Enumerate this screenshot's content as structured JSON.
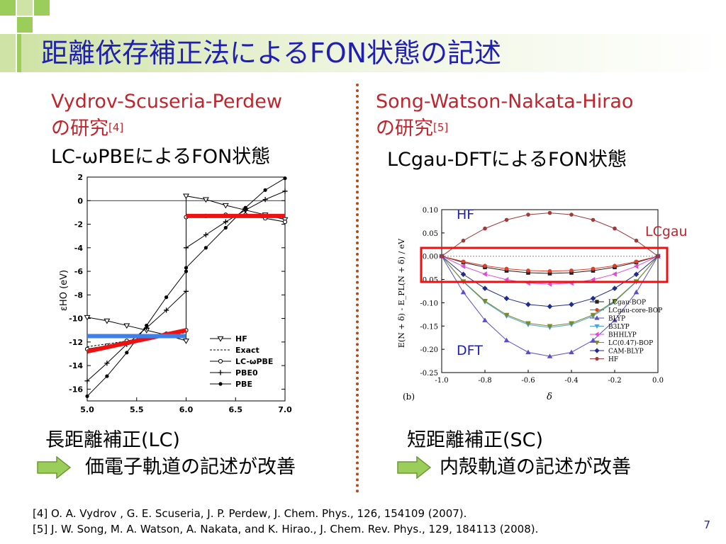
{
  "slide": {
    "title": "距離依存補正法によるFON状態の記述",
    "page_number": "7"
  },
  "left": {
    "heading_line1": "Vydrov-Scuseria-Perdew",
    "heading_line2": "の研究",
    "heading_ref": "[4]",
    "subheading": "LC-ωPBEによるFON状態",
    "bottom_title": "長距離補正(LC)",
    "bottom_text": "価電子軌道の記述が改善"
  },
  "right": {
    "heading_line1": "Song-Watson-Nakata-Hirao",
    "heading_line2": "の研究",
    "heading_ref": "[5]",
    "subheading": "LCgau-DFTによるFON状態",
    "bottom_title": "短距離補正(SC)",
    "bottom_text": "内殻軌道の記述が改善",
    "annot_hf": "HF",
    "annot_lcgau": "LCgau",
    "annot_dft": "DFT"
  },
  "references": [
    "[4] O. A. Vydrov , G. E. Scuseria, J. P. Perdew, J. Chem. Phys., 126, 154109 (2007).",
    "[5] J. W. Song, M. A. Watson, A. Nakata, and K. Hirao., J. Chem. Rev. Phys., 129, 184113 (2008)."
  ],
  "colors": {
    "title": "#1f1fb4",
    "heading": "#c0242c",
    "highlight_red": "#ee1111",
    "highlight_blue": "#3f7fe6",
    "arrow_fill": "#9acd5a"
  },
  "chart_data": [
    {
      "type": "line",
      "xlim": [
        5.0,
        7.0
      ],
      "ylim": [
        -17,
        2
      ],
      "x_ticks": [
        "5.0",
        "5.5",
        "6.0",
        "6.5",
        "7.0"
      ],
      "y_ticks": [
        "2",
        "0",
        "-2",
        "-4",
        "-6",
        "-8",
        "-10",
        "-12",
        "-14",
        "-16"
      ],
      "ylabel": "εHO (eV)",
      "legend_position": "bottom-right",
      "series": [
        {
          "name": "HF",
          "marker": "triangle-down",
          "x": [
            5.0,
            5.2,
            5.4,
            5.6,
            5.8,
            6.0,
            6.0,
            6.2,
            6.4,
            6.6,
            6.8,
            7.0
          ],
          "y": [
            -9.9,
            -10.2,
            -10.6,
            -11.0,
            -11.4,
            -11.9,
            0.4,
            0.1,
            -0.4,
            -0.8,
            -1.2,
            -1.6
          ]
        },
        {
          "name": "Exact",
          "marker": "none",
          "dashed": true,
          "x": [
            5.0,
            6.0,
            6.0,
            7.0
          ],
          "y": [
            -12.4,
            -11.2,
            -1.3,
            -1.3
          ]
        },
        {
          "name": "LC-ωPBE",
          "marker": "circle-open",
          "x": [
            5.0,
            5.2,
            5.4,
            5.6,
            5.8,
            6.0,
            6.0,
            6.2,
            6.4,
            6.6,
            6.8,
            7.0
          ],
          "y": [
            -12.6,
            -12.3,
            -11.9,
            -11.6,
            -11.3,
            -11.0,
            -1.4,
            -1.3,
            -1.2,
            -1.2,
            -1.5,
            -1.8
          ]
        },
        {
          "name": "PBE0",
          "marker": "plus",
          "x": [
            5.0,
            5.2,
            5.4,
            5.6,
            5.8,
            6.0,
            6.0,
            6.2,
            6.4,
            6.6,
            6.8,
            7.0
          ],
          "y": [
            -15.3,
            -13.8,
            -12.2,
            -10.8,
            -9.3,
            -7.7,
            -4.0,
            -2.9,
            -1.8,
            -0.8,
            0.1,
            0.8
          ]
        },
        {
          "name": "PBE",
          "marker": "circle-filled",
          "x": [
            5.0,
            5.2,
            5.4,
            5.6,
            5.8,
            6.0,
            6.0,
            6.2,
            6.4,
            6.6,
            6.8,
            7.0
          ],
          "y": [
            -16.6,
            -14.9,
            -12.9,
            -10.6,
            -8.2,
            -6.0,
            -5.7,
            -4.0,
            -2.3,
            -0.6,
            0.9,
            1.9
          ]
        }
      ],
      "highlights": [
        {
          "color": "red",
          "x": [
            5.0,
            6.0
          ],
          "y": [
            -12.8,
            -11.0
          ]
        },
        {
          "color": "blue",
          "x": [
            5.0,
            6.0
          ],
          "y": [
            -11.5,
            -11.5
          ]
        },
        {
          "color": "red",
          "x": [
            6.0,
            7.0
          ],
          "y": [
            -1.3,
            -1.3
          ]
        }
      ]
    },
    {
      "type": "line",
      "xlim": [
        -1.0,
        0.0
      ],
      "ylim": [
        -0.25,
        0.1
      ],
      "x_ticks": [
        "-1.0",
        "-0.8",
        "-0.6",
        "-0.4",
        "-0.2",
        "0.0"
      ],
      "y_ticks": [
        "0.10",
        "0.05",
        "0.00",
        "-0.05",
        "-0.10",
        "-0.15",
        "-0.20",
        "-0.25"
      ],
      "xlabel": "δ",
      "ylabel": "E(N + δ) - E_PL(N + δ) / eV",
      "panel_label": "(b)",
      "legend_position": "bottom-right",
      "x": [
        -1.0,
        -0.9,
        -0.8,
        -0.7,
        -0.6,
        -0.5,
        -0.4,
        -0.3,
        -0.2,
        -0.1,
        0.0
      ],
      "series": [
        {
          "name": "LCgau-BOP",
          "color": "#222222",
          "marker": "square",
          "peak": -0.037
        },
        {
          "name": "LCgau-core-BOP",
          "color": "#e03c2a",
          "marker": "circle",
          "peak": -0.032
        },
        {
          "name": "BLYP",
          "color": "#5a4fc2",
          "marker": "triangle-up",
          "peak": -0.215
        },
        {
          "name": "B3LYP",
          "color": "#4aa2d8",
          "marker": "triangle-down",
          "peak": -0.153
        },
        {
          "name": "BHHLYP",
          "color": "#e14ad4",
          "marker": "triangle-left",
          "peak": -0.06
        },
        {
          "name": "LC(0.47)-BOP",
          "color": "#7b8a26",
          "marker": "triangle-down",
          "peak": -0.15
        },
        {
          "name": "CAM-BLYP",
          "color": "#1f2d8a",
          "marker": "diamond",
          "peak": -0.108
        },
        {
          "name": "HF",
          "color": "#a03a3a",
          "marker": "hexagon",
          "peak": 0.093
        }
      ]
    }
  ]
}
